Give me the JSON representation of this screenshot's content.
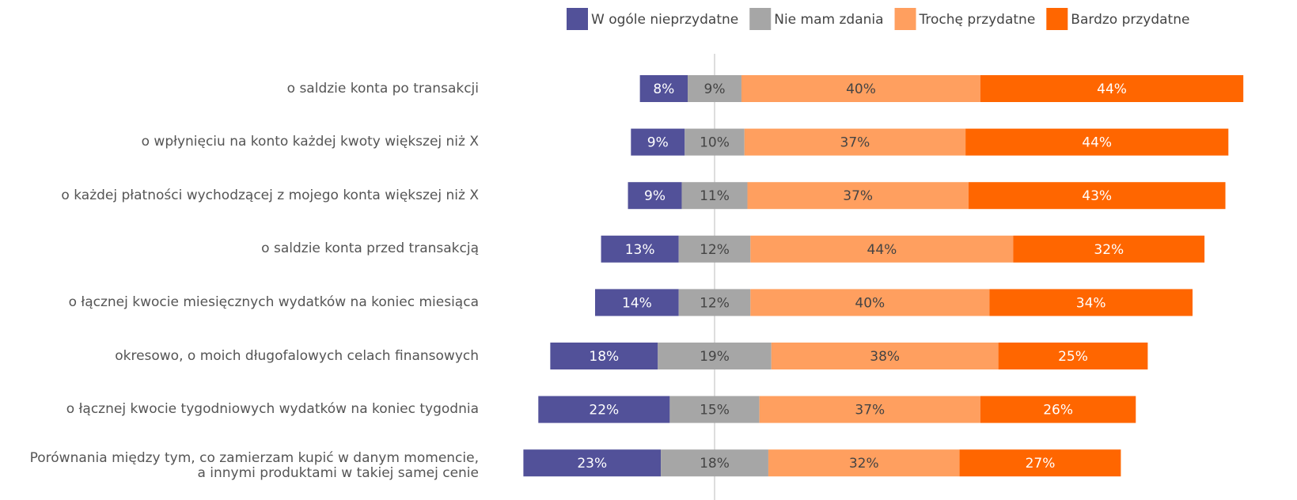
{
  "chart_data": {
    "type": "diverging_bar",
    "categories": [
      "o saldzie konta po transakcji",
      "o wpłynięciu na konto każdej kwoty większej niż X",
      "o każdej płatności wychodzącej z mojego konta większej niż X",
      "o saldzie konta przed transakcją",
      "o łącznej kwocie miesięcznych wydatków na koniec miesiąca",
      "okresowo, o moich długofalowych celach finansowych",
      "o łącznej kwocie tygodniowych wydatków na koniec tygodnia",
      "Porównania między tym, co zamierzam kupić w danym momencie,\na innymi produktami w takiej samej cenie"
    ],
    "series": [
      {
        "name": "W ogóle nieprzydatne",
        "color": "#525199",
        "values": [
          8,
          9,
          9,
          13,
          14,
          18,
          22,
          23
        ],
        "value_labels": [
          "8%",
          "9%",
          "9%",
          "13%",
          "14%",
          "18%",
          "22%",
          "23%"
        ]
      },
      {
        "name": "Nie mam zdania",
        "color": "#a6a6a6",
        "values": [
          9,
          10,
          11,
          12,
          12,
          19,
          15,
          18
        ],
        "value_labels": [
          "9%",
          "10%",
          "11%",
          "12%",
          "12%",
          "19%",
          "15%",
          "18%"
        ]
      },
      {
        "name": "Trochę przydatne",
        "color": "#ff9f5f",
        "values": [
          40,
          37,
          37,
          44,
          40,
          38,
          37,
          32
        ],
        "value_labels": [
          "40%",
          "37%",
          "37%",
          "44%",
          "40%",
          "38%",
          "37%",
          "32%"
        ]
      },
      {
        "name": "Bardzo przydatne",
        "color": "#ff6600",
        "values": [
          44,
          44,
          43,
          32,
          34,
          25,
          26,
          27
        ],
        "value_labels": [
          "44%",
          "44%",
          "43%",
          "32%",
          "34%",
          "25%",
          "26%",
          "27%"
        ]
      }
    ],
    "legend": "top-right"
  }
}
